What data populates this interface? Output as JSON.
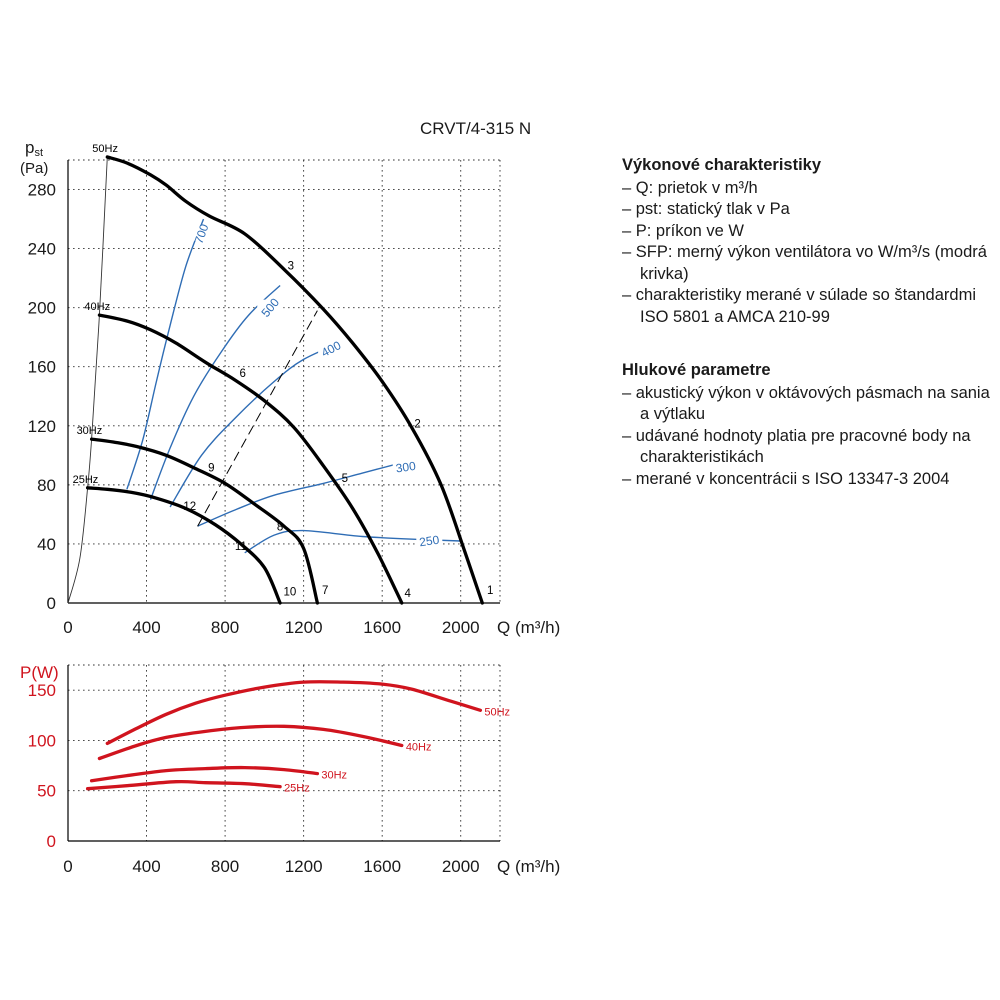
{
  "title": "CRVT/4-315 N",
  "performance": {
    "heading": "Výkonové charakteristiky",
    "items": [
      "– Q: prietok v m³/h",
      "– pst: statický tlak v Pa",
      "– P: príkon ve W",
      "– SFP: merný výkon ventilátora vo W/m³/s (modrá krivka)",
      "– charakteristiky merané v súlade so štandardmi ISO 5801 a AMCA 210-99"
    ]
  },
  "noise": {
    "heading": "Hlukové parametre",
    "items": [
      "– akustický výkon v oktávových pásmach na sania a výtlaku",
      "– udávané hodnoty platia pre pracovné body na charakteristikách",
      "– merané v koncentrácii s ISO 13347-3 2004"
    ]
  },
  "colors": {
    "fan_curve": "#000000",
    "sfp_curve": "#2f6db5",
    "power_curve": "#d0141e",
    "grid": "#333333"
  },
  "chart_data": [
    {
      "type": "line",
      "name": "pressure",
      "ylabel_main": "pst",
      "ylabel_unit": "(Pa)",
      "xlabel": "Q (m³/h)",
      "xlim": [
        0,
        2200
      ],
      "ylim": [
        0,
        300
      ],
      "xticks": [
        0,
        400,
        800,
        1200,
        1600,
        2000
      ],
      "yticks": [
        0,
        40,
        80,
        120,
        160,
        200,
        240,
        280
      ],
      "grid": true,
      "series": [
        {
          "name": "50Hz",
          "color": "#000000",
          "points": [
            [
              200,
              302
            ],
            [
              300,
              298
            ],
            [
              420,
              290
            ],
            [
              500,
              283
            ],
            [
              600,
              272
            ],
            [
              720,
              262
            ],
            [
              900,
              250
            ],
            [
              1100,
              226
            ],
            [
              1300,
              199
            ],
            [
              1450,
              176
            ],
            [
              1600,
              150
            ],
            [
              1750,
              119
            ],
            [
              1900,
              80
            ],
            [
              2020,
              35
            ],
            [
              2110,
              0
            ]
          ]
        },
        {
          "name": "40Hz",
          "color": "#000000",
          "points": [
            [
              160,
              195
            ],
            [
              300,
              191
            ],
            [
              420,
              185
            ],
            [
              550,
              176
            ],
            [
              700,
              163
            ],
            [
              850,
              151
            ],
            [
              1000,
              137
            ],
            [
              1150,
              119
            ],
            [
              1300,
              93
            ],
            [
              1450,
              64
            ],
            [
              1580,
              33
            ],
            [
              1700,
              0
            ]
          ]
        },
        {
          "name": "30Hz",
          "color": "#000000",
          "points": [
            [
              120,
              111
            ],
            [
              230,
              109
            ],
            [
              350,
              106
            ],
            [
              500,
              100
            ],
            [
              650,
              91
            ],
            [
              800,
              81
            ],
            [
              950,
              67
            ],
            [
              1100,
              52
            ],
            [
              1200,
              37
            ],
            [
              1270,
              0
            ]
          ]
        },
        {
          "name": "25Hz",
          "color": "#000000",
          "points": [
            [
              100,
              78
            ],
            [
              200,
              77
            ],
            [
              320,
              75
            ],
            [
              450,
              71
            ],
            [
              600,
              64
            ],
            [
              750,
              53
            ],
            [
              880,
              40
            ],
            [
              1000,
              24
            ],
            [
              1080,
              0
            ]
          ]
        }
      ],
      "sfp_curves": [
        {
          "label": "700",
          "points": [
            [
              300,
              77
            ],
            [
              380,
              110
            ],
            [
              450,
              150
            ],
            [
              520,
              188
            ],
            [
              600,
              228
            ],
            [
              690,
              260
            ]
          ]
        },
        {
          "label": "500",
          "points": [
            [
              420,
              70
            ],
            [
              520,
              105
            ],
            [
              640,
              140
            ],
            [
              780,
              170
            ],
            [
              920,
              195
            ],
            [
              1080,
              215
            ]
          ]
        },
        {
          "label": "400",
          "points": [
            [
              520,
              65
            ],
            [
              680,
              100
            ],
            [
              850,
              125
            ],
            [
              1050,
              150
            ],
            [
              1200,
              165
            ],
            [
              1400,
              177
            ]
          ]
        },
        {
          "label": "300",
          "points": [
            [
              660,
              52
            ],
            [
              850,
              63
            ],
            [
              1050,
              73
            ],
            [
              1300,
              81
            ],
            [
              1500,
              88
            ],
            [
              1700,
              95
            ]
          ]
        },
        {
          "label": "250",
          "points": [
            [
              900,
              34
            ],
            [
              1050,
              46
            ],
            [
              1200,
              49
            ],
            [
              1500,
              45
            ],
            [
              1800,
              43
            ],
            [
              2000,
              42
            ]
          ]
        }
      ],
      "system_curve": {
        "style": "dashed",
        "points": [
          [
            660,
            52
          ],
          [
            1270,
            198
          ]
        ]
      },
      "point_labels": [
        {
          "label": "1",
          "x": 2150,
          "y": 6
        },
        {
          "label": "2",
          "x": 1780,
          "y": 119
        },
        {
          "label": "3",
          "x": 1135,
          "y": 226
        },
        {
          "label": "4",
          "x": 1730,
          "y": 4
        },
        {
          "label": "5",
          "x": 1410,
          "y": 82
        },
        {
          "label": "6",
          "x": 890,
          "y": 153
        },
        {
          "label": "7",
          "x": 1310,
          "y": 6
        },
        {
          "label": "8",
          "x": 1080,
          "y": 49
        },
        {
          "label": "9",
          "x": 730,
          "y": 89
        },
        {
          "label": "10",
          "x": 1130,
          "y": 5
        },
        {
          "label": "11",
          "x": 880,
          "y": 36
        },
        {
          "label": "12",
          "x": 620,
          "y": 63
        }
      ]
    },
    {
      "type": "line",
      "name": "power",
      "ylabel": "P(W)",
      "xlabel": "Q (m³/h)",
      "xlim": [
        0,
        2200
      ],
      "ylim": [
        0,
        175
      ],
      "xticks": [
        0,
        400,
        800,
        1200,
        1600,
        2000
      ],
      "yticks": [
        0,
        50,
        100,
        150
      ],
      "grid": true,
      "series": [
        {
          "name": "50Hz",
          "color": "#d0141e",
          "points": [
            [
              200,
              97
            ],
            [
              350,
              112
            ],
            [
              500,
              126
            ],
            [
              650,
              137
            ],
            [
              800,
              145
            ],
            [
              1000,
              153
            ],
            [
              1200,
              158
            ],
            [
              1400,
              158
            ],
            [
              1600,
              156
            ],
            [
              1750,
              151
            ],
            [
              1950,
              139
            ],
            [
              2100,
              130
            ]
          ]
        },
        {
          "name": "40Hz",
          "color": "#d0141e",
          "points": [
            [
              160,
              82
            ],
            [
              350,
              95
            ],
            [
              500,
              103
            ],
            [
              700,
              109
            ],
            [
              900,
              113
            ],
            [
              1100,
              114
            ],
            [
              1300,
              111
            ],
            [
              1500,
              104
            ],
            [
              1700,
              95
            ]
          ]
        },
        {
          "name": "30Hz",
          "color": "#d0141e",
          "points": [
            [
              120,
              60
            ],
            [
              300,
              65
            ],
            [
              500,
              70
            ],
            [
              700,
              72
            ],
            [
              900,
              73
            ],
            [
              1100,
              71
            ],
            [
              1270,
              67
            ]
          ]
        },
        {
          "name": "25Hz",
          "color": "#d0141e",
          "points": [
            [
              100,
              52
            ],
            [
              300,
              55
            ],
            [
              550,
              59
            ],
            [
              700,
              58
            ],
            [
              900,
              57
            ],
            [
              1080,
              54
            ]
          ]
        }
      ]
    }
  ]
}
